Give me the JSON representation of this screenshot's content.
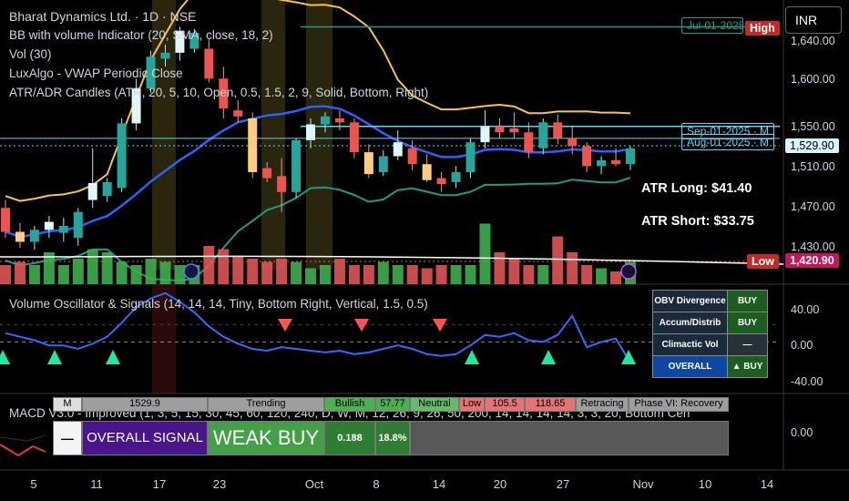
{
  "symbol_line": "Bharat Dynamics Ltd. · 1D · NSE",
  "indicators": [
    "BB with volume Indicator (20, SMA, close, 18, 2)",
    "Vol (30)",
    "LuxAlgo - VWAP Periodic Close",
    "ATR/ADR Candles (ATR, 20, 5, 10, Open, 0.5, 1.5, 2, 9, Solid, Bottom, Right)"
  ],
  "currency_button": "INR",
  "price_axis": [
    "1,640.00",
    "1,600.00",
    "1,550.00",
    "1,510.00",
    "1,470.00",
    "1,430.00"
  ],
  "last_price": "1,529.90",
  "low_price": "1,420.90",
  "high_label": "High",
  "low_label": "Low",
  "date_tags": {
    "jul": "Jul-01-2025",
    "sep": "Sep-01-2025 · M",
    "aug": "Aug-01-2025 · M"
  },
  "atr_long": "ATR Long: $41.40",
  "atr_short": "ATR Short: $33.75",
  "oscillator_title": "Volume Oscillator & Signals (14, 14, 14, Tiny, Bottom Right, Vertical, 1.5, 0.5)",
  "osc_axis": [
    "40.00",
    "0.00",
    "-40.00"
  ],
  "signal_table": [
    {
      "label": "OBV Divergence",
      "value": "BUY"
    },
    {
      "label": "Accum/Distrib",
      "value": "BUY"
    },
    {
      "label": "Climactic Vol",
      "value": "—"
    },
    {
      "label": "OVERALL",
      "value": "▲ BUY"
    }
  ],
  "macd_title": "MACD V3.0 - Improved (1, 3, 5, 15, 30, 45, 60, 120, 240, D, W, M, 12, 26, 9, 26, 50, 200, 14, 14, 14, 14, 3, 3, 20, Bottom Cen",
  "macd_axis": "0.00",
  "macd_row1": [
    "M",
    "1529.9",
    "Trending",
    "Bullish",
    "57.77",
    "Neutral",
    "Low",
    "105.5",
    "118.65",
    "Retracing",
    "Phase VI: Recovery"
  ],
  "macd_row2": [
    "—",
    "OVERALL SIGNAL",
    "WEAK BUY",
    "0.188",
    "18.8%"
  ],
  "x_axis": [
    "5",
    "11",
    "17",
    "23",
    "Oct",
    "8",
    "14",
    "20",
    "27",
    "Nov",
    "10",
    "14"
  ],
  "colors": {
    "up": "#26a69a",
    "down": "#ef5350",
    "bb_upper": "#f5c542",
    "bb_mid": "#2962ff",
    "bb_lower": "#1e9b8a",
    "vwap": "#5fd3f3",
    "osc": "#2f6bff"
  },
  "chart_data": {
    "type": "candlestick",
    "candles": [
      {
        "o": 1470,
        "h": 1478,
        "l": 1440,
        "c": 1446
      },
      {
        "o": 1446,
        "h": 1455,
        "l": 1430,
        "c": 1436
      },
      {
        "o": 1436,
        "h": 1452,
        "l": 1428,
        "c": 1448
      },
      {
        "o": 1448,
        "h": 1462,
        "l": 1440,
        "c": 1456
      },
      {
        "o": 1445,
        "h": 1460,
        "l": 1436,
        "c": 1452
      },
      {
        "o": 1440,
        "h": 1470,
        "l": 1432,
        "c": 1466
      },
      {
        "o": 1478,
        "h": 1530,
        "l": 1470,
        "c": 1495
      },
      {
        "o": 1482,
        "h": 1500,
        "l": 1476,
        "c": 1496
      },
      {
        "o": 1490,
        "h": 1560,
        "l": 1486,
        "c": 1555
      },
      {
        "o": 1555,
        "h": 1600,
        "l": 1548,
        "c": 1590
      },
      {
        "o": 1590,
        "h": 1628,
        "l": 1586,
        "c": 1622
      },
      {
        "o": 1620,
        "h": 1634,
        "l": 1612,
        "c": 1626
      },
      {
        "o": 1626,
        "h": 1652,
        "l": 1618,
        "c": 1648
      },
      {
        "o": 1630,
        "h": 1650,
        "l": 1626,
        "c": 1646
      },
      {
        "o": 1630,
        "h": 1640,
        "l": 1596,
        "c": 1600
      },
      {
        "o": 1600,
        "h": 1612,
        "l": 1560,
        "c": 1570
      },
      {
        "o": 1568,
        "h": 1578,
        "l": 1556,
        "c": 1562
      },
      {
        "o": 1560,
        "h": 1566,
        "l": 1500,
        "c": 1506
      },
      {
        "o": 1510,
        "h": 1516,
        "l": 1496,
        "c": 1500
      },
      {
        "o": 1502,
        "h": 1520,
        "l": 1466,
        "c": 1486
      },
      {
        "o": 1486,
        "h": 1540,
        "l": 1480,
        "c": 1538
      },
      {
        "o": 1538,
        "h": 1560,
        "l": 1530,
        "c": 1554
      },
      {
        "o": 1554,
        "h": 1566,
        "l": 1546,
        "c": 1562
      },
      {
        "o": 1560,
        "h": 1568,
        "l": 1548,
        "c": 1556
      },
      {
        "o": 1556,
        "h": 1560,
        "l": 1520,
        "c": 1526
      },
      {
        "o": 1526,
        "h": 1534,
        "l": 1500,
        "c": 1504
      },
      {
        "o": 1506,
        "h": 1528,
        "l": 1502,
        "c": 1522
      },
      {
        "o": 1522,
        "h": 1548,
        "l": 1518,
        "c": 1536
      },
      {
        "o": 1530,
        "h": 1538,
        "l": 1508,
        "c": 1514
      },
      {
        "o": 1514,
        "h": 1524,
        "l": 1496,
        "c": 1498
      },
      {
        "o": 1500,
        "h": 1506,
        "l": 1486,
        "c": 1494
      },
      {
        "o": 1496,
        "h": 1512,
        "l": 1490,
        "c": 1506
      },
      {
        "o": 1506,
        "h": 1540,
        "l": 1500,
        "c": 1536
      },
      {
        "o": 1536,
        "h": 1568,
        "l": 1530,
        "c": 1552
      },
      {
        "o": 1552,
        "h": 1560,
        "l": 1540,
        "c": 1546
      },
      {
        "o": 1550,
        "h": 1566,
        "l": 1540,
        "c": 1546
      },
      {
        "o": 1546,
        "h": 1556,
        "l": 1520,
        "c": 1526
      },
      {
        "o": 1530,
        "h": 1560,
        "l": 1524,
        "c": 1556
      },
      {
        "o": 1556,
        "h": 1564,
        "l": 1534,
        "c": 1540
      },
      {
        "o": 1540,
        "h": 1552,
        "l": 1524,
        "c": 1532
      },
      {
        "o": 1532,
        "h": 1536,
        "l": 1506,
        "c": 1512
      },
      {
        "o": 1512,
        "h": 1522,
        "l": 1504,
        "c": 1518
      },
      {
        "o": 1518,
        "h": 1530,
        "l": 1512,
        "c": 1514
      },
      {
        "o": 1514,
        "h": 1532,
        "l": 1508,
        "c": 1530
      }
    ],
    "volume": [
      0.3,
      0.35,
      0.3,
      0.5,
      0.3,
      0.4,
      0.55,
      0.5,
      0.35,
      0.3,
      0.4,
      0.35,
      0.3,
      0.3,
      0.6,
      0.55,
      0.45,
      0.4,
      0.35,
      0.4,
      0.35,
      0.25,
      0.3,
      0.4,
      0.3,
      0.3,
      0.35,
      0.3,
      0.3,
      0.25,
      0.3,
      0.3,
      0.3,
      0.95,
      0.5,
      0.4,
      0.3,
      0.3,
      0.75,
      0.5,
      0.3,
      0.25,
      0.2,
      0.35
    ],
    "oscillator": [
      10,
      6,
      2,
      -4,
      -4,
      -8,
      -2,
      6,
      22,
      40,
      50,
      56,
      46,
      34,
      18,
      6,
      -2,
      -8,
      -10,
      -6,
      -8,
      -10,
      -12,
      -10,
      -14,
      -12,
      -8,
      -4,
      -8,
      -14,
      -16,
      -14,
      -4,
      8,
      6,
      10,
      2,
      0,
      8,
      30,
      -6,
      0,
      4,
      -24
    ],
    "osc_range": [
      -55,
      60
    ],
    "price_range": [
      1408,
      1668
    ]
  }
}
